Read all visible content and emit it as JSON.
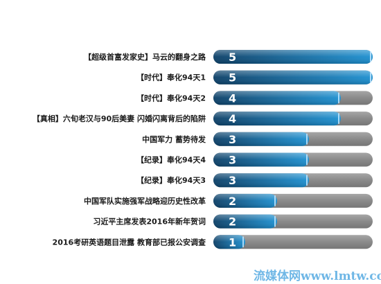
{
  "chart_data": {
    "type": "bar",
    "orientation": "horizontal",
    "categories": [
      "【超级首富发家史】马云的翻身之路",
      "【时代】奉化94天1",
      "【时代】奉化94天2",
      "【真相】六旬老汉与90后美妻 闪婚闪离背后的陷阱",
      "中国军力 蓄势待发",
      "【纪录】奉化94天4",
      "【纪录】奉化94天3",
      "中国军队实施强军战略迎历史性改革",
      "习近平主席发表2016年新年贺词",
      "2016考研英语题目泄露 教育部已报公安调查"
    ],
    "values": [
      5,
      5,
      4,
      4,
      3,
      3,
      3,
      2,
      2,
      1
    ],
    "xlim": [
      0,
      5
    ],
    "data_labels": [
      "5",
      "5",
      "4",
      "4",
      "3",
      "3",
      "3",
      "2",
      "2",
      "1"
    ],
    "colors": {
      "bar_dark": "#0a3e66",
      "bar_light": "#1b8fd0",
      "track": "#8d8d8d"
    }
  },
  "watermark": {
    "text": "流媒体网www.lmtw.com"
  }
}
